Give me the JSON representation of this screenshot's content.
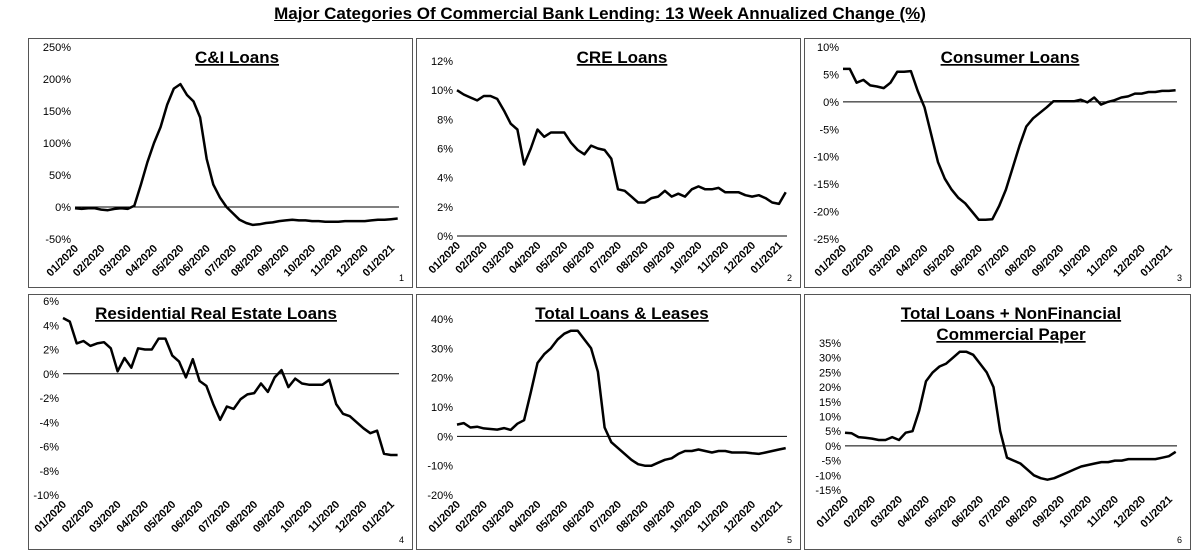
{
  "main_title": "Major Categories Of Commercial Bank Lending: 13 Week Annualized Change (%)",
  "chart_data": [
    {
      "type": "line",
      "title": "C&I Loans",
      "panel_number": "1",
      "ylim": [
        -50,
        250
      ],
      "yticks": [
        -50,
        0,
        50,
        100,
        150,
        200,
        250
      ],
      "y_format": "percent",
      "categories": [
        "01/2020",
        "02/2020",
        "03/2020",
        "04/2020",
        "05/2020",
        "06/2020",
        "07/2020",
        "08/2020",
        "09/2020",
        "10/2020",
        "11/2020",
        "12/2020",
        "01/2021"
      ],
      "series": [
        {
          "x": [
            0,
            0.25,
            0.5,
            0.75,
            1,
            1.25,
            1.5,
            1.75,
            2,
            2.25,
            2.5,
            2.75,
            3,
            3.25,
            3.5,
            3.75,
            4,
            4.25,
            4.5,
            4.75,
            5,
            5.25,
            5.5,
            5.75,
            6,
            6.25,
            6.5,
            6.75,
            7,
            7.25,
            7.5,
            7.75,
            8,
            8.25,
            8.5,
            8.75,
            9,
            9.25,
            9.5,
            9.75,
            10,
            10.25,
            10.5,
            10.75,
            11,
            11.25,
            11.5,
            11.75,
            12,
            12.25
          ],
          "values": [
            -2,
            -3,
            -2,
            -2,
            -4,
            -5,
            -3,
            -2,
            -3,
            2,
            35,
            70,
            100,
            125,
            160,
            185,
            192,
            175,
            165,
            140,
            75,
            35,
            15,
            0,
            -10,
            -20,
            -25,
            -28,
            -27,
            -25,
            -24,
            -22,
            -21,
            -20,
            -21,
            -21,
            -22,
            -22,
            -23,
            -23,
            -23,
            -22,
            -22,
            -22,
            -22,
            -21,
            -20,
            -20,
            -19,
            -18
          ]
        }
      ]
    },
    {
      "type": "line",
      "title": "CRE Loans",
      "panel_number": "2",
      "ylim": [
        0,
        12
      ],
      "yticks": [
        0,
        2,
        4,
        6,
        8,
        10,
        12
      ],
      "y_format": "percent",
      "categories": [
        "01/2020",
        "02/2020",
        "03/2020",
        "04/2020",
        "05/2020",
        "06/2020",
        "07/2020",
        "08/2020",
        "09/2020",
        "10/2020",
        "11/2020",
        "12/2020",
        "01/2021"
      ],
      "series": [
        {
          "x": [
            0,
            0.25,
            0.5,
            0.75,
            1,
            1.25,
            1.5,
            1.75,
            2,
            2.25,
            2.5,
            2.75,
            3,
            3.25,
            3.5,
            3.75,
            4,
            4.25,
            4.5,
            4.75,
            5,
            5.25,
            5.5,
            5.75,
            6,
            6.25,
            6.5,
            6.75,
            7,
            7.25,
            7.5,
            7.75,
            8,
            8.25,
            8.5,
            8.75,
            9,
            9.25,
            9.5,
            9.75,
            10,
            10.25,
            10.5,
            10.75,
            11,
            11.25,
            11.5,
            11.75,
            12,
            12.25
          ],
          "values": [
            10,
            9.7,
            9.5,
            9.3,
            9.6,
            9.6,
            9.4,
            8.6,
            7.7,
            7.3,
            4.9,
            6,
            7.3,
            6.8,
            7.1,
            7.1,
            7.1,
            6.4,
            5.9,
            5.6,
            6.2,
            6,
            5.9,
            5.3,
            3.2,
            3.1,
            2.7,
            2.3,
            2.3,
            2.6,
            2.7,
            3.1,
            2.7,
            2.9,
            2.7,
            3.2,
            3.4,
            3.2,
            3.2,
            3.3,
            3,
            3,
            3,
            2.8,
            2.7,
            2.8,
            2.6,
            2.3,
            2.2,
            3
          ]
        }
      ]
    },
    {
      "type": "line",
      "title": "Consumer Loans",
      "panel_number": "3",
      "ylim": [
        -25,
        10
      ],
      "yticks": [
        -25,
        -20,
        -15,
        -10,
        -5,
        0,
        5,
        10
      ],
      "y_format": "percent",
      "categories": [
        "01/2020",
        "02/2020",
        "03/2020",
        "04/2020",
        "05/2020",
        "06/2020",
        "07/2020",
        "08/2020",
        "09/2020",
        "10/2020",
        "11/2020",
        "12/2020",
        "01/2021"
      ],
      "series": [
        {
          "x": [
            0,
            0.25,
            0.5,
            0.75,
            1,
            1.25,
            1.5,
            1.75,
            2,
            2.25,
            2.5,
            2.75,
            3,
            3.25,
            3.5,
            3.75,
            4,
            4.25,
            4.5,
            4.75,
            5,
            5.25,
            5.5,
            5.75,
            6,
            6.25,
            6.5,
            6.75,
            7,
            7.25,
            7.5,
            7.75,
            8,
            8.25,
            8.5,
            8.75,
            9,
            9.25,
            9.5,
            9.75,
            10,
            10.25,
            10.5,
            10.75,
            11,
            11.25,
            11.5,
            11.75,
            12,
            12.25
          ],
          "values": [
            6,
            6,
            3.5,
            4,
            3,
            2.8,
            2.5,
            3.5,
            5.5,
            5.5,
            5.6,
            2,
            -1,
            -6,
            -11,
            -14,
            -16,
            -17.5,
            -18.5,
            -20,
            -21.5,
            -21.5,
            -21.4,
            -19,
            -16,
            -12,
            -8,
            -4.5,
            -3,
            -2,
            -1,
            0.1,
            0.1,
            0.1,
            0.1,
            0.4,
            -0.1,
            0.8,
            -0.5,
            0,
            0.3,
            0.8,
            1,
            1.5,
            1.5,
            1.8,
            1.8,
            2,
            2,
            2.1
          ]
        }
      ]
    },
    {
      "type": "line",
      "title": "Residential Real Estate Loans",
      "panel_number": "4",
      "ylim": [
        -10,
        6
      ],
      "yticks": [
        -10,
        -8,
        -6,
        -4,
        -2,
        0,
        2,
        4,
        6
      ],
      "y_format": "percent",
      "categories": [
        "01/2020",
        "02/2020",
        "03/2020",
        "04/2020",
        "05/2020",
        "06/2020",
        "07/2020",
        "08/2020",
        "09/2020",
        "10/2020",
        "11/2020",
        "12/2020",
        "01/2021"
      ],
      "series": [
        {
          "x": [
            0,
            0.25,
            0.5,
            0.75,
            1,
            1.25,
            1.5,
            1.75,
            2,
            2.25,
            2.5,
            2.75,
            3,
            3.25,
            3.5,
            3.75,
            4,
            4.25,
            4.5,
            4.75,
            5,
            5.25,
            5.5,
            5.75,
            6,
            6.25,
            6.5,
            6.75,
            7,
            7.25,
            7.5,
            7.75,
            8,
            8.25,
            8.5,
            8.75,
            9,
            9.25,
            9.5,
            9.75,
            10,
            10.25,
            10.5,
            10.75,
            11,
            11.25,
            11.5,
            11.75,
            12,
            12.25
          ],
          "values": [
            4.6,
            4.3,
            2.5,
            2.7,
            2.3,
            2.5,
            2.6,
            2.1,
            0.2,
            1.3,
            0.5,
            2.1,
            2,
            2,
            2.9,
            2.9,
            1.5,
            1,
            -0.3,
            1.2,
            -0.6,
            -1,
            -2.5,
            -3.8,
            -2.7,
            -2.9,
            -2.1,
            -1.7,
            -1.6,
            -0.8,
            -1.5,
            -0.3,
            0.3,
            -1.1,
            -0.4,
            -0.8,
            -0.9,
            -0.9,
            -0.9,
            -0.5,
            -2.5,
            -3.3,
            -3.5,
            -4,
            -4.5,
            -4.9,
            -4.7,
            -6.6,
            -6.7,
            -6.7
          ]
        }
      ]
    },
    {
      "type": "line",
      "title": "Total Loans & Leases",
      "panel_number": "5",
      "ylim": [
        -20,
        40
      ],
      "yticks": [
        -20,
        -10,
        0,
        10,
        20,
        30,
        40
      ],
      "y_format": "percent",
      "categories": [
        "01/2020",
        "02/2020",
        "03/2020",
        "04/2020",
        "05/2020",
        "06/2020",
        "07/2020",
        "08/2020",
        "09/2020",
        "10/2020",
        "11/2020",
        "12/2020",
        "01/2021"
      ],
      "series": [
        {
          "x": [
            0,
            0.25,
            0.5,
            0.75,
            1,
            1.25,
            1.5,
            1.75,
            2,
            2.25,
            2.5,
            2.75,
            3,
            3.25,
            3.5,
            3.75,
            4,
            4.25,
            4.5,
            4.75,
            5,
            5.25,
            5.5,
            5.75,
            6,
            6.25,
            6.5,
            6.75,
            7,
            7.25,
            7.5,
            7.75,
            8,
            8.25,
            8.5,
            8.75,
            9,
            9.25,
            9.5,
            9.75,
            10,
            10.25,
            10.5,
            10.75,
            11,
            11.25,
            11.5,
            11.75,
            12,
            12.25
          ],
          "values": [
            4,
            4.5,
            3,
            3.3,
            2.7,
            2.5,
            2.3,
            2.8,
            2.2,
            4.3,
            5.5,
            15,
            25,
            28,
            30,
            33,
            35,
            36,
            36,
            33,
            30,
            22,
            3,
            -2,
            -4,
            -6,
            -8,
            -9.5,
            -10,
            -10,
            -9,
            -8,
            -7.5,
            -6,
            -5,
            -5,
            -4.5,
            -5,
            -5.5,
            -5,
            -5,
            -5.5,
            -5.5,
            -5.5,
            -5.8,
            -6,
            -5.5,
            -5,
            -4.5,
            -4
          ]
        }
      ]
    },
    {
      "type": "line",
      "title": "Total Loans + NonFinancial Commercial Paper",
      "panel_number": "6",
      "ylim": [
        -15,
        35
      ],
      "yticks": [
        -15,
        -10,
        -5,
        0,
        5,
        10,
        15,
        20,
        25,
        30,
        35
      ],
      "y_format": "percent",
      "categories": [
        "01/2020",
        "02/2020",
        "03/2020",
        "04/2020",
        "05/2020",
        "06/2020",
        "07/2020",
        "08/2020",
        "09/2020",
        "10/2020",
        "11/2020",
        "12/2020",
        "01/2021"
      ],
      "series": [
        {
          "x": [
            0,
            0.25,
            0.5,
            0.75,
            1,
            1.25,
            1.5,
            1.75,
            2,
            2.25,
            2.5,
            2.75,
            3,
            3.25,
            3.5,
            3.75,
            4,
            4.25,
            4.5,
            4.75,
            5,
            5.25,
            5.5,
            5.75,
            6,
            6.25,
            6.5,
            6.75,
            7,
            7.25,
            7.5,
            7.75,
            8,
            8.25,
            8.5,
            8.75,
            9,
            9.25,
            9.5,
            9.75,
            10,
            10.25,
            10.5,
            10.75,
            11,
            11.25,
            11.5,
            11.75,
            12,
            12.25
          ],
          "values": [
            4.5,
            4.3,
            3,
            2.8,
            2.5,
            2,
            2,
            3,
            2,
            4.5,
            5,
            12,
            22,
            25,
            27,
            28,
            30,
            32,
            32,
            31,
            28,
            25,
            20,
            5,
            -4,
            -5,
            -6,
            -8,
            -10,
            -11,
            -11.5,
            -11,
            -10,
            -9,
            -8,
            -7,
            -6.5,
            -6,
            -5.5,
            -5.5,
            -5,
            -5,
            -4.5,
            -4.5,
            -4.5,
            -4.5,
            -4.5,
            -4,
            -3.5,
            -2
          ]
        }
      ]
    }
  ]
}
